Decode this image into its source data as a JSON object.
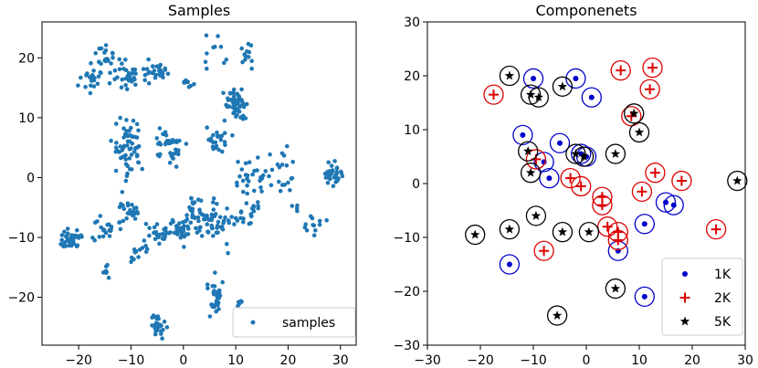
{
  "chart_data": [
    {
      "type": "scatter",
      "title": "Samples",
      "xlim": [
        -27,
        33
      ],
      "ylim": [
        -28,
        26
      ],
      "xticks": [
        "−20",
        "−10",
        "0",
        "10",
        "20",
        "30"
      ],
      "xtick_values": [
        -20,
        -10,
        0,
        10,
        20,
        30
      ],
      "yticks": [
        "−20",
        "−10",
        "0",
        "10",
        "20"
      ],
      "ytick_values": [
        -20,
        -10,
        0,
        10,
        20
      ],
      "legend": {
        "position": "bottom-right",
        "entries": [
          "samples"
        ]
      },
      "color": "#1f77b4",
      "clusters": [
        {
          "x": -17.5,
          "y": 16.5,
          "n": 22,
          "sx": 1.2,
          "sy": 1.2
        },
        {
          "x": -14.5,
          "y": 20.0,
          "n": 22,
          "sx": 1.2,
          "sy": 1.0
        },
        {
          "x": -10.5,
          "y": 17.0,
          "n": 34,
          "sx": 1.6,
          "sy": 1.2
        },
        {
          "x": -5.0,
          "y": 18.5,
          "n": 24,
          "sx": 1.3,
          "sy": 1.0
        },
        {
          "x": 1.0,
          "y": 16.0,
          "n": 10,
          "sx": 1.0,
          "sy": 0.7
        },
        {
          "x": 6.0,
          "y": 21.0,
          "n": 10,
          "sx": 0.8,
          "sy": 1.5
        },
        {
          "x": 12.5,
          "y": 20.5,
          "n": 12,
          "sx": 0.9,
          "sy": 1.1
        },
        {
          "x": 10.0,
          "y": 12.0,
          "n": 55,
          "sx": 1.1,
          "sy": 1.6
        },
        {
          "x": -10.5,
          "y": 5.0,
          "n": 60,
          "sx": 1.4,
          "sy": 2.4
        },
        {
          "x": -3.0,
          "y": 5.0,
          "n": 40,
          "sx": 1.3,
          "sy": 1.5
        },
        {
          "x": 6.0,
          "y": 6.0,
          "n": 22,
          "sx": 1.3,
          "sy": 1.0
        },
        {
          "x": 12.5,
          "y": 0.5,
          "n": 24,
          "sx": 1.5,
          "sy": 1.5
        },
        {
          "x": 19.0,
          "y": 0.0,
          "n": 20,
          "sx": 1.5,
          "sy": 2.2
        },
        {
          "x": 28.5,
          "y": 0.5,
          "n": 34,
          "sx": 0.8,
          "sy": 0.9
        },
        {
          "x": 2.0,
          "y": -4.5,
          "n": 20,
          "sx": 0.9,
          "sy": 1.4
        },
        {
          "x": -0.5,
          "y": -8.5,
          "n": 38,
          "sx": 1.3,
          "sy": 1.0
        },
        {
          "x": 6.0,
          "y": -7.5,
          "n": 50,
          "sx": 1.7,
          "sy": 1.6
        },
        {
          "x": 12.0,
          "y": -5.5,
          "n": 24,
          "sx": 1.5,
          "sy": 1.5
        },
        {
          "x": -10.5,
          "y": -5.5,
          "n": 22,
          "sx": 1.2,
          "sy": 0.8
        },
        {
          "x": -5.0,
          "y": -9.0,
          "n": 22,
          "sx": 1.0,
          "sy": 1.0
        },
        {
          "x": -14.5,
          "y": -8.5,
          "n": 22,
          "sx": 1.2,
          "sy": 1.0
        },
        {
          "x": -21.5,
          "y": -10.0,
          "n": 34,
          "sx": 1.3,
          "sy": 0.9
        },
        {
          "x": -8.5,
          "y": -12.5,
          "n": 14,
          "sx": 1.0,
          "sy": 0.8
        },
        {
          "x": -14.5,
          "y": -15.5,
          "n": 8,
          "sx": 0.7,
          "sy": 0.9
        },
        {
          "x": 6.0,
          "y": -20.0,
          "n": 32,
          "sx": 0.8,
          "sy": 1.4
        },
        {
          "x": -5.0,
          "y": -25.0,
          "n": 30,
          "sx": 0.8,
          "sy": 1.0
        },
        {
          "x": 11.0,
          "y": -21.0,
          "n": 6,
          "sx": 0.5,
          "sy": 0.4
        },
        {
          "x": 25.0,
          "y": -8.0,
          "n": 12,
          "sx": 0.8,
          "sy": 1.0
        },
        {
          "x": 21.0,
          "y": -5.0,
          "n": 4,
          "sx": 0.5,
          "sy": 0.5
        }
      ]
    },
    {
      "type": "scatter",
      "title": "Componenets",
      "xlim": [
        -30,
        30
      ],
      "ylim": [
        -30,
        30
      ],
      "xticks": [
        "−30",
        "−20",
        "−10",
        "0",
        "10",
        "20",
        "30"
      ],
      "xtick_values": [
        -30,
        -20,
        -10,
        0,
        10,
        20,
        30
      ],
      "yticks": [
        "−30",
        "−20",
        "−10",
        "0",
        "10",
        "20",
        "30"
      ],
      "ytick_values": [
        -30,
        -20,
        -10,
        0,
        10,
        20,
        30
      ],
      "legend": {
        "position": "bottom-right",
        "entries": [
          "1K",
          "2K",
          "5K"
        ]
      },
      "series": [
        {
          "name": "1K",
          "marker": "dot",
          "color": "#0000cc",
          "points": [
            [
              -10,
              19.5
            ],
            [
              -2,
              19.5
            ],
            [
              1,
              16
            ],
            [
              -12,
              9
            ],
            [
              -5,
              7.5
            ],
            [
              -8,
              4
            ],
            [
              -7,
              1
            ],
            [
              -1,
              5.5
            ],
            [
              0,
              5
            ],
            [
              6,
              -12.5
            ],
            [
              11,
              -7.5
            ],
            [
              15,
              -3.5
            ],
            [
              16.5,
              -4
            ],
            [
              11,
              -21
            ],
            [
              -14.5,
              -15
            ]
          ]
        },
        {
          "name": "2K",
          "marker": "plus",
          "color": "#dd0000",
          "points": [
            [
              -17.5,
              16.5
            ],
            [
              6.5,
              21
            ],
            [
              12.5,
              21.5
            ],
            [
              12,
              17.5
            ],
            [
              8.5,
              12.5
            ],
            [
              -9.5,
              4.5
            ],
            [
              -3,
              1
            ],
            [
              -1,
              -0.5
            ],
            [
              3,
              -2.5
            ],
            [
              3,
              -4
            ],
            [
              4,
              -8
            ],
            [
              6,
              -9
            ],
            [
              6,
              -10.5
            ],
            [
              13,
              2
            ],
            [
              18,
              0.5
            ],
            [
              10.5,
              -1.5
            ],
            [
              24.5,
              -8.5
            ],
            [
              -8,
              -12.5
            ]
          ]
        },
        {
          "name": "5K",
          "marker": "star",
          "color": "#000000",
          "points": [
            [
              -14.5,
              20
            ],
            [
              -10.5,
              16.5
            ],
            [
              -9,
              16
            ],
            [
              -4.5,
              18
            ],
            [
              9,
              13
            ],
            [
              10,
              9.5
            ],
            [
              -11,
              6
            ],
            [
              -10.5,
              2
            ],
            [
              -2,
              5.5
            ],
            [
              -0.5,
              5
            ],
            [
              5.5,
              5.5
            ],
            [
              28.5,
              0.5
            ],
            [
              -9.5,
              -6
            ],
            [
              -14.5,
              -8.5
            ],
            [
              -21,
              -9.5
            ],
            [
              -4.5,
              -9
            ],
            [
              0.5,
              -9
            ],
            [
              5.5,
              -19.5
            ],
            [
              -5.5,
              -24.5
            ]
          ]
        }
      ]
    }
  ]
}
